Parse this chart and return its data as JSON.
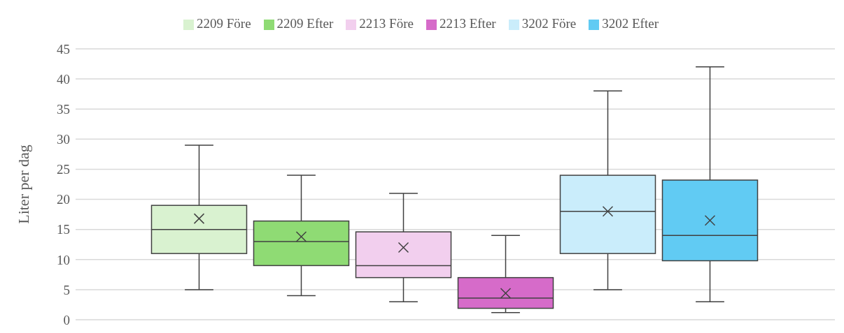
{
  "chart_data": {
    "type": "box",
    "ylabel": "Liter per dag",
    "categories": [
      null
    ],
    "ylim": [
      0,
      45
    ],
    "yticks": [
      0,
      5,
      10,
      15,
      20,
      25,
      30,
      35,
      40,
      45
    ],
    "grid": "y",
    "legend": "top",
    "tick_labels": "y",
    "series": [
      {
        "name": "2209 Före",
        "color": "#d9f2d0",
        "boxes": [
          {
            "low": 5,
            "q1": 11,
            "median": 15,
            "q3": 19,
            "high": 29,
            "mean": 16.8
          }
        ]
      },
      {
        "name": "2209 Efter",
        "color": "#8fdb74",
        "boxes": [
          {
            "low": 4,
            "q1": 9,
            "median": 13,
            "q3": 16.4,
            "high": 24,
            "mean": 13.8
          }
        ]
      },
      {
        "name": "2213 Före",
        "color": "#f2cfee",
        "boxes": [
          {
            "low": 3,
            "q1": 7,
            "median": 9,
            "q3": 14.6,
            "high": 21,
            "mean": 12
          }
        ]
      },
      {
        "name": "2213 Efter",
        "color": "#d66bc9",
        "boxes": [
          {
            "low": 1.2,
            "q1": 1.9,
            "median": 3.6,
            "q3": 7,
            "high": 14,
            "mean": 4.4
          }
        ]
      },
      {
        "name": "3202 Före",
        "color": "#caedfb",
        "boxes": [
          {
            "low": 5,
            "q1": 11,
            "median": 18,
            "q3": 24,
            "high": 38,
            "mean": 18
          }
        ]
      },
      {
        "name": "3202 Efter",
        "color": "#61cbf3",
        "boxes": [
          {
            "low": 3,
            "q1": 9.8,
            "median": 14,
            "q3": 23.2,
            "high": 42,
            "mean": 16.5
          }
        ]
      }
    ]
  }
}
